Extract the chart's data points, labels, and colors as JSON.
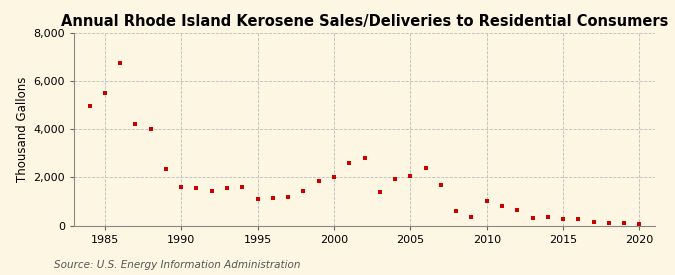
{
  "title": "Annual Rhode Island Kerosene Sales/Deliveries to Residential Consumers",
  "ylabel": "Thousand Gallons",
  "source": "Source: U.S. Energy Information Administration",
  "background_color": "#fdf6e3",
  "marker_color": "#cc0000",
  "years": [
    1984,
    1985,
    1986,
    1987,
    1988,
    1989,
    1990,
    1991,
    1992,
    1993,
    1994,
    1995,
    1996,
    1997,
    1998,
    1999,
    2000,
    2001,
    2002,
    2003,
    2004,
    2005,
    2006,
    2007,
    2008,
    2009,
    2010,
    2011,
    2012,
    2013,
    2014,
    2015,
    2016,
    2017,
    2018,
    2019,
    2020
  ],
  "values": [
    4950,
    5500,
    6750,
    4200,
    4000,
    2350,
    1600,
    1550,
    1450,
    1550,
    1600,
    1100,
    1150,
    1200,
    1450,
    1850,
    2000,
    2600,
    2800,
    1400,
    1950,
    2050,
    2400,
    1700,
    600,
    350,
    1000,
    800,
    650,
    300,
    350,
    250,
    250,
    150,
    100,
    100,
    75
  ],
  "xlim": [
    1983,
    2021
  ],
  "ylim": [
    0,
    8000
  ],
  "yticks": [
    0,
    2000,
    4000,
    6000,
    8000
  ],
  "xticks": [
    1985,
    1990,
    1995,
    2000,
    2005,
    2010,
    2015,
    2020
  ],
  "grid_color": "#bbbbbb",
  "title_fontsize": 10.5,
  "label_fontsize": 8.5,
  "tick_fontsize": 8,
  "source_fontsize": 7.5
}
